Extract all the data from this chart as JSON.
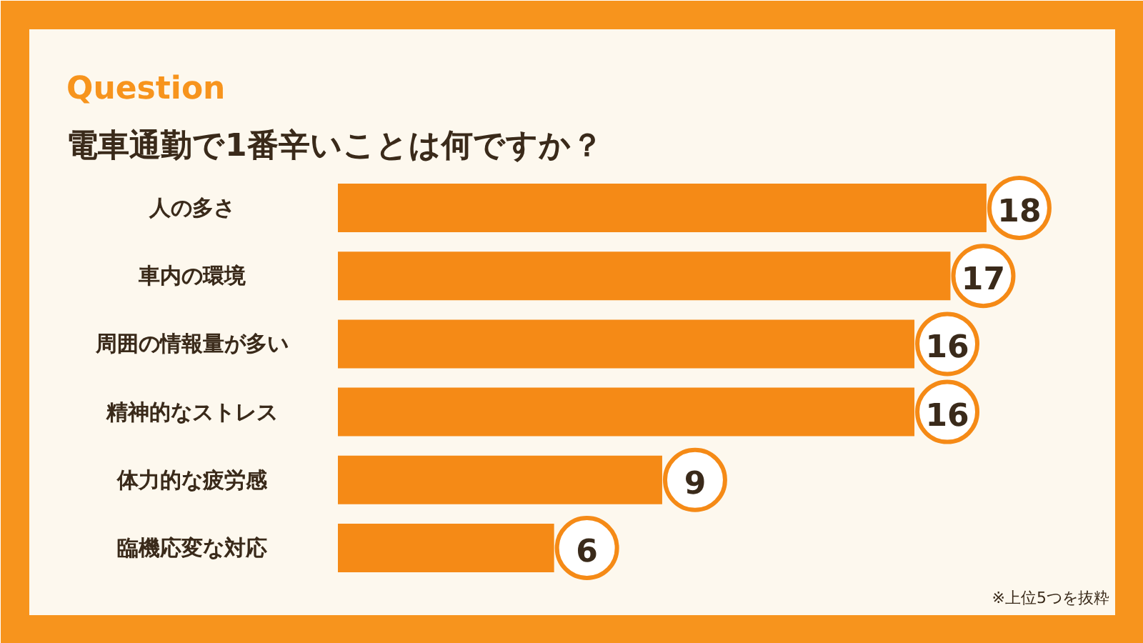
{
  "chart_data": {
    "type": "bar",
    "orientation": "horizontal",
    "title": "Question",
    "subtitle": "電車通勤で1番辛いことは何ですか？",
    "categories": [
      "人の多さ",
      "車内の環境",
      "周囲の情報量が多い",
      "精神的なストレス",
      "体力的な疲労感",
      "臨機応変な対応"
    ],
    "values": [
      18,
      17,
      16,
      16,
      9,
      6
    ],
    "color": "#f58a16",
    "data_labels": true,
    "annotations": [
      "※上位5つを抜粋"
    ]
  }
}
